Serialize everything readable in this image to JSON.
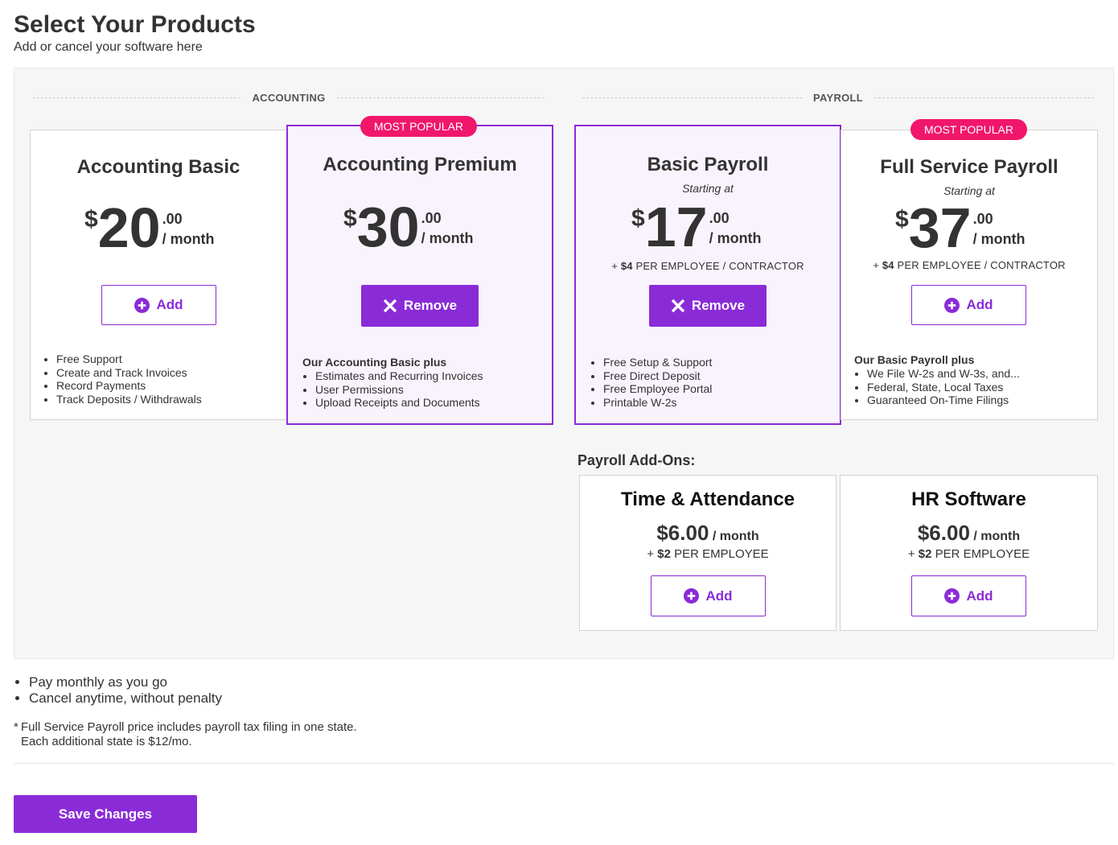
{
  "header": {
    "title": "Select Your Products",
    "subtitle": "Add or cancel your software here"
  },
  "sections": {
    "accounting": "ACCOUNTING",
    "payroll": "PAYROLL"
  },
  "badge_label": "MOST POPULAR",
  "plans": [
    {
      "name": "Accounting Basic",
      "currency": "$",
      "dollars": "20",
      "cents": ".00",
      "period": "/ month",
      "selected": false,
      "button": "Add",
      "features_lead": "",
      "features": [
        "Free Support",
        "Create and Track Invoices",
        "Record Payments",
        "Track Deposits / Withdrawals"
      ]
    },
    {
      "name": "Accounting Premium",
      "currency": "$",
      "dollars": "30",
      "cents": ".00",
      "period": "/ month",
      "selected": true,
      "popular": true,
      "button": "Remove",
      "features_lead": "Our Accounting Basic plus",
      "features": [
        "Estimates and Recurring Invoices",
        "User Permissions",
        "Upload Receipts and Documents"
      ]
    },
    {
      "name": "Basic Payroll",
      "starting": "Starting at",
      "currency": "$",
      "dollars": "17",
      "cents": ".00",
      "period": "/ month",
      "per_prefix": "+",
      "per_amount": "$4",
      "per_text": "PER EMPLOYEE / CONTRACTOR",
      "selected": true,
      "button": "Remove",
      "features_lead": "",
      "features": [
        "Free Setup & Support",
        "Free Direct Deposit",
        "Free Employee Portal",
        "Printable W-2s"
      ]
    },
    {
      "name": "Full Service Payroll",
      "starting": "Starting at",
      "currency": "$",
      "dollars": "37",
      "cents": ".00",
      "period": "/ month",
      "per_prefix": "+",
      "per_amount": "$4",
      "per_text": "PER EMPLOYEE / CONTRACTOR",
      "selected": false,
      "popular": true,
      "button": "Add",
      "features_lead": "Our Basic Payroll plus",
      "features": [
        "We File W-2s and W-3s, and...",
        "Federal, State, Local Taxes",
        "Guaranteed On-Time Filings"
      ]
    }
  ],
  "addons": {
    "title": "Payroll Add-Ons:",
    "items": [
      {
        "name": "Time & Attendance",
        "price": "$6.00",
        "period": "/ month",
        "per_prefix": "+",
        "per_amount": "$2",
        "per_text": "PER EMPLOYEE",
        "button": "Add"
      },
      {
        "name": "HR Software",
        "price": "$6.00",
        "period": "/ month",
        "per_prefix": "+",
        "per_amount": "$2",
        "per_text": "PER EMPLOYEE",
        "button": "Add"
      }
    ]
  },
  "notes": [
    "Pay monthly as you go",
    "Cancel anytime, without penalty"
  ],
  "footnote": {
    "star": "*",
    "line1": "Full Service Payroll price includes payroll tax filing in one state.",
    "line2": "Each additional state is $12/mo."
  },
  "save_label": "Save Changes",
  "colors": {
    "accent": "#8a2bd8",
    "badge": "#f0176b",
    "selected_bg": "#f9f3fd"
  },
  "icons": {
    "add": "plus-circle-icon",
    "remove": "close-icon"
  }
}
